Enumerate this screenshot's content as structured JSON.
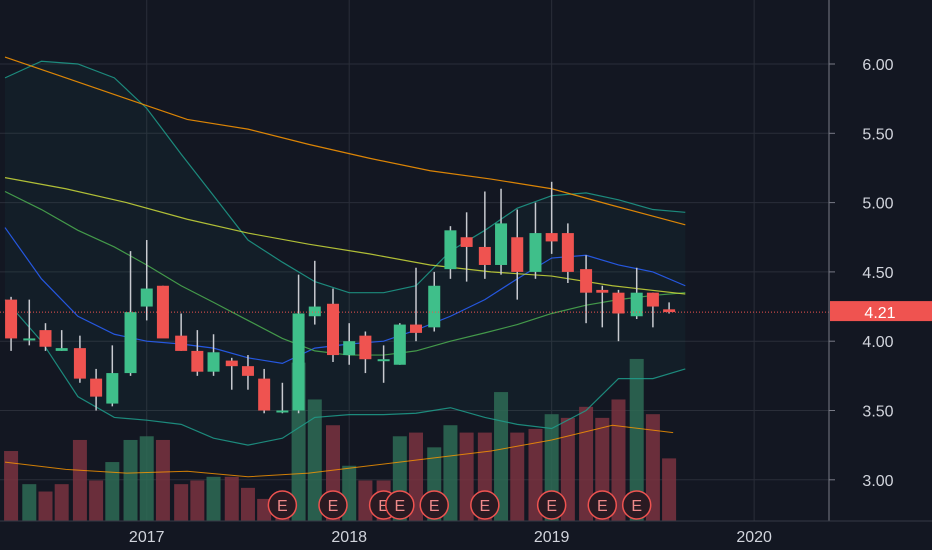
{
  "colors": {
    "background": "#131722",
    "up": "#26a69a",
    "up_body": "#3fbf8a",
    "down": "#ef5350",
    "grid": "#2a2e39",
    "axis_text": "#d1d4dc",
    "ma_fast": "#2962ff",
    "ma_mid": "#4caf50",
    "ma_slow": "#cddc39",
    "ma_long": "#ff9800",
    "bollinger": "#1e9e8c",
    "volume_ma": "#ff9800"
  },
  "price_axis": {
    "ticks": [
      "6.00",
      "5.50",
      "5.00",
      "4.50",
      "4.00",
      "3.50",
      "3.00"
    ],
    "current_price_label": "4.21"
  },
  "time_axis": {
    "ticks": [
      "2017",
      "2018",
      "2019",
      "2020"
    ]
  },
  "events": {
    "label": "E",
    "count": 9
  },
  "chart_data": {
    "type": "candlestick",
    "title": "",
    "interval": "monthly",
    "ylim": [
      2.72,
      6.45
    ],
    "current_price": 4.21,
    "x_range": [
      2016.3,
      2020.35
    ],
    "grid": true,
    "price_axis_position": "right",
    "candles": [
      {
        "t": 2016.33,
        "o": 4.3,
        "h": 4.32,
        "l": 3.93,
        "c": 4.02
      },
      {
        "t": 2016.42,
        "o": 4.02,
        "h": 4.3,
        "l": 3.97,
        "c": 4.02
      },
      {
        "t": 2016.5,
        "o": 4.08,
        "h": 4.13,
        "l": 3.93,
        "c": 3.96
      },
      {
        "t": 2016.58,
        "o": 3.93,
        "h": 4.08,
        "l": 3.93,
        "c": 3.95
      },
      {
        "t": 2016.67,
        "o": 3.95,
        "h": 4.04,
        "l": 3.7,
        "c": 3.73
      },
      {
        "t": 2016.75,
        "o": 3.73,
        "h": 3.8,
        "l": 3.5,
        "c": 3.6
      },
      {
        "t": 2016.83,
        "o": 3.55,
        "h": 3.97,
        "l": 3.53,
        "c": 3.77
      },
      {
        "t": 2016.92,
        "o": 3.77,
        "h": 4.65,
        "l": 3.75,
        "c": 4.21
      },
      {
        "t": 2017.0,
        "o": 4.25,
        "h": 4.73,
        "l": 4.15,
        "c": 4.38
      },
      {
        "t": 2017.08,
        "o": 4.4,
        "h": 4.4,
        "l": 4.05,
        "c": 4.02
      },
      {
        "t": 2017.17,
        "o": 4.04,
        "h": 4.2,
        "l": 3.93,
        "c": 3.93
      },
      {
        "t": 2017.25,
        "o": 3.93,
        "h": 4.08,
        "l": 3.75,
        "c": 3.78
      },
      {
        "t": 2017.33,
        "o": 3.78,
        "h": 4.05,
        "l": 3.75,
        "c": 3.92
      },
      {
        "t": 2017.42,
        "o": 3.86,
        "h": 3.88,
        "l": 3.65,
        "c": 3.82
      },
      {
        "t": 2017.5,
        "o": 3.82,
        "h": 3.9,
        "l": 3.65,
        "c": 3.75
      },
      {
        "t": 2017.58,
        "o": 3.73,
        "h": 3.8,
        "l": 3.48,
        "c": 3.5
      },
      {
        "t": 2017.67,
        "o": 3.5,
        "h": 3.7,
        "l": 3.48,
        "c": 3.5
      },
      {
        "t": 2017.75,
        "o": 3.5,
        "h": 4.48,
        "l": 3.48,
        "c": 4.2
      },
      {
        "t": 2017.83,
        "o": 4.18,
        "h": 4.58,
        "l": 4.12,
        "c": 4.25
      },
      {
        "t": 2017.92,
        "o": 4.27,
        "h": 4.38,
        "l": 3.85,
        "c": 3.9
      },
      {
        "t": 2018.0,
        "o": 3.9,
        "h": 4.13,
        "l": 3.83,
        "c": 4.0
      },
      {
        "t": 2018.08,
        "o": 4.04,
        "h": 4.07,
        "l": 3.77,
        "c": 3.87
      },
      {
        "t": 2018.17,
        "o": 3.87,
        "h": 3.97,
        "l": 3.7,
        "c": 3.87
      },
      {
        "t": 2018.25,
        "o": 3.83,
        "h": 4.13,
        "l": 3.83,
        "c": 4.12
      },
      {
        "t": 2018.33,
        "o": 4.12,
        "h": 4.53,
        "l": 4.0,
        "c": 4.06
      },
      {
        "t": 2018.42,
        "o": 4.1,
        "h": 4.5,
        "l": 4.07,
        "c": 4.4
      },
      {
        "t": 2018.5,
        "o": 4.52,
        "h": 4.83,
        "l": 4.45,
        "c": 4.8
      },
      {
        "t": 2018.58,
        "o": 4.75,
        "h": 4.93,
        "l": 4.43,
        "c": 4.68
      },
      {
        "t": 2018.67,
        "o": 4.68,
        "h": 5.08,
        "l": 4.45,
        "c": 4.55
      },
      {
        "t": 2018.75,
        "o": 4.55,
        "h": 5.1,
        "l": 4.48,
        "c": 4.85
      },
      {
        "t": 2018.83,
        "o": 4.75,
        "h": 4.95,
        "l": 4.3,
        "c": 4.5
      },
      {
        "t": 2018.92,
        "o": 4.5,
        "h": 5.0,
        "l": 4.45,
        "c": 4.78
      },
      {
        "t": 2019.0,
        "o": 4.78,
        "h": 5.15,
        "l": 4.63,
        "c": 4.72
      },
      {
        "t": 2019.08,
        "o": 4.78,
        "h": 4.85,
        "l": 4.42,
        "c": 4.5
      },
      {
        "t": 2019.17,
        "o": 4.52,
        "h": 4.62,
        "l": 4.13,
        "c": 4.35
      },
      {
        "t": 2019.25,
        "o": 4.37,
        "h": 4.4,
        "l": 4.1,
        "c": 4.35
      },
      {
        "t": 2019.33,
        "o": 4.35,
        "h": 4.37,
        "l": 4.0,
        "c": 4.2
      },
      {
        "t": 2019.42,
        "o": 4.18,
        "h": 4.53,
        "l": 4.16,
        "c": 4.35
      },
      {
        "t": 2019.5,
        "o": 4.35,
        "h": 4.35,
        "l": 4.1,
        "c": 4.25
      },
      {
        "t": 2019.58,
        "o": 4.23,
        "h": 4.28,
        "l": 4.2,
        "c": 4.21
      }
    ],
    "volume": [
      {
        "t": 2016.33,
        "v": 1.9,
        "dir": "down"
      },
      {
        "t": 2016.42,
        "v": 1.0,
        "dir": "up"
      },
      {
        "t": 2016.5,
        "v": 0.8,
        "dir": "down"
      },
      {
        "t": 2016.58,
        "v": 1.0,
        "dir": "down"
      },
      {
        "t": 2016.67,
        "v": 2.2,
        "dir": "down"
      },
      {
        "t": 2016.75,
        "v": 1.1,
        "dir": "down"
      },
      {
        "t": 2016.83,
        "v": 1.6,
        "dir": "up"
      },
      {
        "t": 2016.92,
        "v": 2.2,
        "dir": "up"
      },
      {
        "t": 2017.0,
        "v": 2.3,
        "dir": "up"
      },
      {
        "t": 2017.08,
        "v": 2.2,
        "dir": "down"
      },
      {
        "t": 2017.17,
        "v": 1.0,
        "dir": "down"
      },
      {
        "t": 2017.25,
        "v": 1.1,
        "dir": "down"
      },
      {
        "t": 2017.33,
        "v": 1.2,
        "dir": "up"
      },
      {
        "t": 2017.42,
        "v": 1.2,
        "dir": "down"
      },
      {
        "t": 2017.5,
        "v": 0.9,
        "dir": "down"
      },
      {
        "t": 2017.58,
        "v": 0.6,
        "dir": "down"
      },
      {
        "t": 2017.67,
        "v": 0.7,
        "dir": "down"
      },
      {
        "t": 2017.75,
        "v": 4.3,
        "dir": "up"
      },
      {
        "t": 2017.83,
        "v": 3.3,
        "dir": "up"
      },
      {
        "t": 2017.92,
        "v": 2.6,
        "dir": "down"
      },
      {
        "t": 2018.0,
        "v": 1.5,
        "dir": "up"
      },
      {
        "t": 2018.08,
        "v": 1.1,
        "dir": "down"
      },
      {
        "t": 2018.17,
        "v": 1.1,
        "dir": "down"
      },
      {
        "t": 2018.25,
        "v": 2.3,
        "dir": "up"
      },
      {
        "t": 2018.33,
        "v": 2.4,
        "dir": "down"
      },
      {
        "t": 2018.42,
        "v": 2.0,
        "dir": "up"
      },
      {
        "t": 2018.5,
        "v": 2.6,
        "dir": "up"
      },
      {
        "t": 2018.58,
        "v": 2.4,
        "dir": "down"
      },
      {
        "t": 2018.67,
        "v": 2.4,
        "dir": "down"
      },
      {
        "t": 2018.75,
        "v": 3.5,
        "dir": "up"
      },
      {
        "t": 2018.83,
        "v": 2.4,
        "dir": "down"
      },
      {
        "t": 2018.92,
        "v": 2.5,
        "dir": "down"
      },
      {
        "t": 2019.0,
        "v": 2.9,
        "dir": "up"
      },
      {
        "t": 2019.08,
        "v": 2.8,
        "dir": "down"
      },
      {
        "t": 2019.17,
        "v": 3.1,
        "dir": "down"
      },
      {
        "t": 2019.25,
        "v": 2.8,
        "dir": "down"
      },
      {
        "t": 2019.33,
        "v": 3.3,
        "dir": "down"
      },
      {
        "t": 2019.42,
        "v": 4.4,
        "dir": "up"
      },
      {
        "t": 2019.5,
        "v": 2.9,
        "dir": "down"
      },
      {
        "t": 2019.58,
        "v": 1.7,
        "dir": "down"
      }
    ],
    "volume_max": 6.0,
    "volume_ma": [
      {
        "t": 2016.3,
        "v": 1.6
      },
      {
        "t": 2016.6,
        "v": 1.4
      },
      {
        "t": 2016.9,
        "v": 1.3
      },
      {
        "t": 2017.2,
        "v": 1.35
      },
      {
        "t": 2017.5,
        "v": 1.2
      },
      {
        "t": 2017.8,
        "v": 1.3
      },
      {
        "t": 2018.1,
        "v": 1.5
      },
      {
        "t": 2018.4,
        "v": 1.7
      },
      {
        "t": 2018.7,
        "v": 1.9
      },
      {
        "t": 2019.0,
        "v": 2.2
      },
      {
        "t": 2019.3,
        "v": 2.6
      },
      {
        "t": 2019.6,
        "v": 2.4
      }
    ],
    "overlays": [
      {
        "role": "bollinger-upper",
        "color": "#1e9e8c",
        "points": [
          {
            "t": 2016.3,
            "v": 5.9
          },
          {
            "t": 2016.48,
            "v": 6.02
          },
          {
            "t": 2016.66,
            "v": 6.0
          },
          {
            "t": 2016.84,
            "v": 5.9
          },
          {
            "t": 2017.0,
            "v": 5.68
          },
          {
            "t": 2017.17,
            "v": 5.35
          },
          {
            "t": 2017.33,
            "v": 5.05
          },
          {
            "t": 2017.5,
            "v": 4.73
          },
          {
            "t": 2017.67,
            "v": 4.57
          },
          {
            "t": 2017.83,
            "v": 4.43
          },
          {
            "t": 2018.0,
            "v": 4.35
          },
          {
            "t": 2018.17,
            "v": 4.35
          },
          {
            "t": 2018.33,
            "v": 4.4
          },
          {
            "t": 2018.5,
            "v": 4.65
          },
          {
            "t": 2018.67,
            "v": 4.8
          },
          {
            "t": 2018.83,
            "v": 4.96
          },
          {
            "t": 2019.0,
            "v": 5.05
          },
          {
            "t": 2019.17,
            "v": 5.07
          },
          {
            "t": 2019.33,
            "v": 5.02
          },
          {
            "t": 2019.5,
            "v": 4.95
          },
          {
            "t": 2019.66,
            "v": 4.93
          }
        ]
      },
      {
        "role": "bollinger-lower",
        "color": "#1e9e8c",
        "points": [
          {
            "t": 2016.3,
            "v": 4.3
          },
          {
            "t": 2016.48,
            "v": 4.0
          },
          {
            "t": 2016.66,
            "v": 3.6
          },
          {
            "t": 2016.84,
            "v": 3.45
          },
          {
            "t": 2017.0,
            "v": 3.43
          },
          {
            "t": 2017.17,
            "v": 3.4
          },
          {
            "t": 2017.33,
            "v": 3.3
          },
          {
            "t": 2017.5,
            "v": 3.25
          },
          {
            "t": 2017.67,
            "v": 3.3
          },
          {
            "t": 2017.83,
            "v": 3.45
          },
          {
            "t": 2018.0,
            "v": 3.47
          },
          {
            "t": 2018.17,
            "v": 3.47
          },
          {
            "t": 2018.33,
            "v": 3.48
          },
          {
            "t": 2018.5,
            "v": 3.52
          },
          {
            "t": 2018.67,
            "v": 3.45
          },
          {
            "t": 2018.83,
            "v": 3.4
          },
          {
            "t": 2019.0,
            "v": 3.37
          },
          {
            "t": 2019.17,
            "v": 3.5
          },
          {
            "t": 2019.33,
            "v": 3.73
          },
          {
            "t": 2019.5,
            "v": 3.73
          },
          {
            "t": 2019.66,
            "v": 3.8
          }
        ]
      },
      {
        "role": "ma-fast",
        "color": "#2962ff",
        "points": [
          {
            "t": 2016.3,
            "v": 4.82
          },
          {
            "t": 2016.48,
            "v": 4.45
          },
          {
            "t": 2016.66,
            "v": 4.18
          },
          {
            "t": 2016.84,
            "v": 4.05
          },
          {
            "t": 2017.0,
            "v": 4.0
          },
          {
            "t": 2017.17,
            "v": 3.98
          },
          {
            "t": 2017.33,
            "v": 3.95
          },
          {
            "t": 2017.5,
            "v": 3.88
          },
          {
            "t": 2017.67,
            "v": 3.84
          },
          {
            "t": 2017.83,
            "v": 3.95
          },
          {
            "t": 2018.0,
            "v": 3.98
          },
          {
            "t": 2018.17,
            "v": 4.0
          },
          {
            "t": 2018.33,
            "v": 4.08
          },
          {
            "t": 2018.5,
            "v": 4.18
          },
          {
            "t": 2018.67,
            "v": 4.3
          },
          {
            "t": 2018.83,
            "v": 4.45
          },
          {
            "t": 2019.0,
            "v": 4.6
          },
          {
            "t": 2019.17,
            "v": 4.62
          },
          {
            "t": 2019.33,
            "v": 4.55
          },
          {
            "t": 2019.5,
            "v": 4.5
          },
          {
            "t": 2019.66,
            "v": 4.4
          }
        ]
      },
      {
        "role": "ma-mid",
        "color": "#4caf50",
        "points": [
          {
            "t": 2016.3,
            "v": 5.08
          },
          {
            "t": 2016.48,
            "v": 4.95
          },
          {
            "t": 2016.66,
            "v": 4.8
          },
          {
            "t": 2016.84,
            "v": 4.68
          },
          {
            "t": 2017.0,
            "v": 4.55
          },
          {
            "t": 2017.17,
            "v": 4.4
          },
          {
            "t": 2017.33,
            "v": 4.28
          },
          {
            "t": 2017.5,
            "v": 4.15
          },
          {
            "t": 2017.67,
            "v": 4.02
          },
          {
            "t": 2017.83,
            "v": 3.93
          },
          {
            "t": 2018.0,
            "v": 3.9
          },
          {
            "t": 2018.17,
            "v": 3.9
          },
          {
            "t": 2018.33,
            "v": 3.93
          },
          {
            "t": 2018.5,
            "v": 4.0
          },
          {
            "t": 2018.67,
            "v": 4.06
          },
          {
            "t": 2018.83,
            "v": 4.12
          },
          {
            "t": 2019.0,
            "v": 4.2
          },
          {
            "t": 2019.17,
            "v": 4.26
          },
          {
            "t": 2019.33,
            "v": 4.3
          },
          {
            "t": 2019.5,
            "v": 4.33
          },
          {
            "t": 2019.66,
            "v": 4.35
          }
        ]
      },
      {
        "role": "ma-slow",
        "color": "#cddc39",
        "points": [
          {
            "t": 2016.3,
            "v": 5.18
          },
          {
            "t": 2016.6,
            "v": 5.1
          },
          {
            "t": 2016.9,
            "v": 5.0
          },
          {
            "t": 2017.2,
            "v": 4.88
          },
          {
            "t": 2017.5,
            "v": 4.78
          },
          {
            "t": 2017.8,
            "v": 4.7
          },
          {
            "t": 2018.1,
            "v": 4.63
          },
          {
            "t": 2018.4,
            "v": 4.55
          },
          {
            "t": 2018.7,
            "v": 4.5
          },
          {
            "t": 2019.0,
            "v": 4.47
          },
          {
            "t": 2019.3,
            "v": 4.4
          },
          {
            "t": 2019.66,
            "v": 4.34
          }
        ]
      },
      {
        "role": "ma-long",
        "color": "#ff9800",
        "points": [
          {
            "t": 2016.3,
            "v": 6.05
          },
          {
            "t": 2016.6,
            "v": 5.9
          },
          {
            "t": 2016.9,
            "v": 5.75
          },
          {
            "t": 2017.2,
            "v": 5.6
          },
          {
            "t": 2017.5,
            "v": 5.53
          },
          {
            "t": 2017.8,
            "v": 5.42
          },
          {
            "t": 2018.1,
            "v": 5.32
          },
          {
            "t": 2018.4,
            "v": 5.23
          },
          {
            "t": 2018.7,
            "v": 5.17
          },
          {
            "t": 2019.0,
            "v": 5.1
          },
          {
            "t": 2019.3,
            "v": 4.98
          },
          {
            "t": 2019.66,
            "v": 4.84
          }
        ]
      }
    ],
    "events_t": [
      2017.67,
      2017.92,
      2018.17,
      2018.25,
      2018.42,
      2018.67,
      2019.0,
      2019.25,
      2019.42
    ]
  }
}
